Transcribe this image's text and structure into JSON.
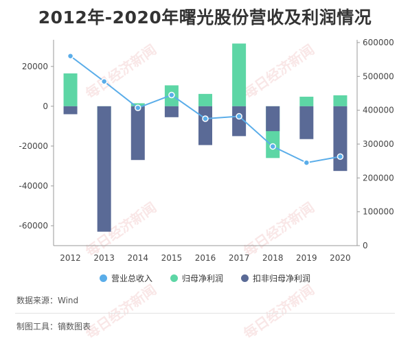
{
  "title": "2012年-2020年曙光股份营收及利润情况",
  "legend": [
    {
      "label": "营业总收入",
      "color": "#5aade9"
    },
    {
      "label": "归母净利润",
      "color": "#5dd6a5"
    },
    {
      "label": "扣非归母净利润",
      "color": "#5a6a96"
    }
  ],
  "footer": {
    "source": "数据来源：Wind",
    "tool": "制图工具：镝数图表"
  },
  "watermark": "每日经济新闻",
  "chart_data": {
    "type": "bar",
    "categories": [
      "2012",
      "2013",
      "2014",
      "2015",
      "2016",
      "2017",
      "2018",
      "2019",
      "2020"
    ],
    "series": [
      {
        "name": "归母净利润",
        "type": "bar",
        "axis": "left",
        "color": "#5dd6a5",
        "values": [
          16500,
          -27000,
          1500,
          10500,
          6200,
          31500,
          -26000,
          4800,
          5500
        ]
      },
      {
        "name": "扣非归母净利润",
        "type": "bar",
        "axis": "left",
        "color": "#5a6a96",
        "values": [
          -4000,
          -63000,
          -27000,
          -5500,
          -19500,
          -15000,
          -12500,
          -16500,
          -32500
        ]
      },
      {
        "name": "营业总收入",
        "type": "line",
        "axis": "right",
        "color": "#5aade9",
        "values": [
          560000,
          485000,
          407000,
          445000,
          375000,
          382000,
          293000,
          245000,
          263000
        ]
      }
    ],
    "y_left": {
      "ylim": [
        -70000,
        32000
      ],
      "ticks": [
        20000,
        0,
        -20000,
        -40000,
        -60000
      ],
      "tick_labels": [
        "20000",
        "0",
        "-20000",
        "-40000",
        "-60000"
      ]
    },
    "y_right": {
      "ylim": [
        0,
        600000
      ],
      "ticks": [
        600000,
        500000,
        400000,
        300000,
        200000,
        100000,
        0
      ],
      "tick_labels": [
        "600000",
        "500000",
        "400000",
        "300000",
        "200000",
        "100000",
        "0"
      ]
    },
    "grid": false,
    "legend_position": "bottom"
  }
}
